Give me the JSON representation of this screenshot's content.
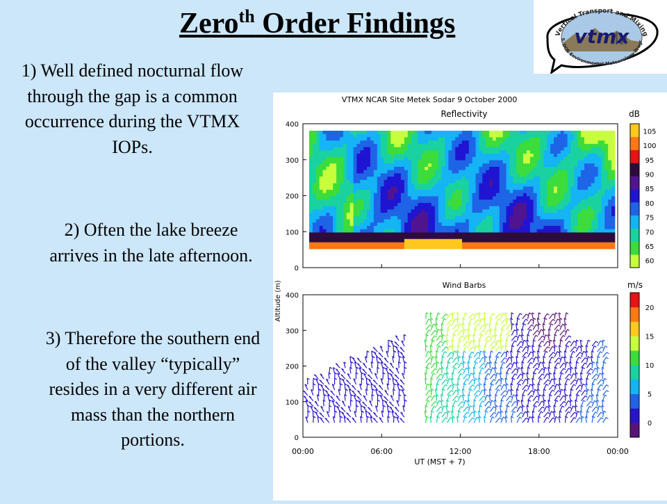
{
  "slide": {
    "title_main": "Zero",
    "title_sup": "th",
    "title_rest": " Order Findings",
    "points": [
      "1) Well defined nocturnal flow through the gap is a common occurrence during the VTMX IOPs.",
      "2) Often the lake breeze arrives in the late afternoon.",
      "3) Therefore the southern end of the valley “typically” resides in a very different air mass than the northern portions."
    ]
  },
  "logo": {
    "top_text": "Vertical Transport and Mixing",
    "center_text": "vtmx",
    "bottom_text": "U.S. DOE Environmental Meteorology Program"
  },
  "figure": {
    "header": "VTMX   NCAR Site   Metek Sodar   9 October 2000",
    "ylabel": "Altitude (m)",
    "xlabel": "UT   (MST + 7)",
    "x_ticks": [
      "00:00",
      "06:00",
      "12:00",
      "18:00",
      "00:00"
    ],
    "y_ticks": [
      "0",
      "100",
      "200",
      "300",
      "400"
    ],
    "top_panel": {
      "title": "Reflectivity",
      "unit": "dB",
      "scale_labels": [
        "60",
        "65",
        "70",
        "75",
        "80",
        "85",
        "90",
        "95",
        "100",
        "105"
      ]
    },
    "bottom_panel": {
      "title": "Wind Barbs",
      "unit": "m/s",
      "scale_labels": [
        "0",
        "5",
        "10",
        "15",
        "20"
      ]
    }
  },
  "colors": {
    "background": "#cce6fa",
    "reflectivity_scale": [
      "#c8ff3c",
      "#3cdc3c",
      "#19d2a0",
      "#14b4f5",
      "#1e64e6",
      "#1e14d2",
      "#501490",
      "#2d0c3c",
      "#e61414",
      "#ff7814",
      "#ffc81e"
    ],
    "wind_scale": [
      "#5a1478",
      "#2814c8",
      "#1e64e6",
      "#14b4f5",
      "#19d2a0",
      "#3cdc3c",
      "#c8ff3c",
      "#ffc81e",
      "#ff7814",
      "#e61414"
    ]
  }
}
